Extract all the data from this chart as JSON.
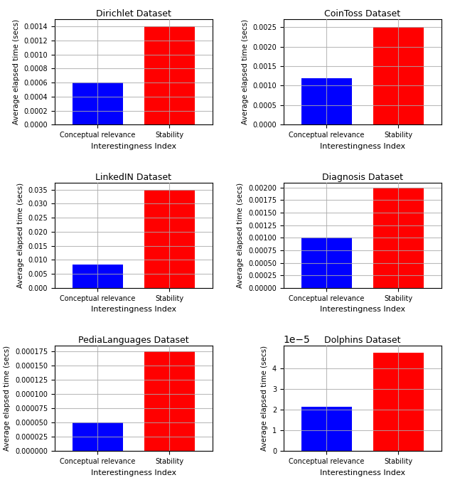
{
  "subplots": [
    {
      "title": "Dirichlet Dataset",
      "values": [
        0.0006,
        0.0014
      ],
      "ylim": [
        0,
        0.0015
      ],
      "yticks": [
        0.0,
        0.0002,
        0.0004,
        0.0006,
        0.0008,
        0.001,
        0.0012,
        0.0014
      ]
    },
    {
      "title": "CoinToss Dataset",
      "values": [
        0.0012,
        0.0025
      ],
      "ylim": [
        0,
        0.0027
      ],
      "yticks": [
        0.0,
        0.0005,
        0.001,
        0.0015,
        0.002,
        0.0025
      ]
    },
    {
      "title": "LinkedIN Dataset",
      "values": [
        0.0082,
        0.035
      ],
      "ylim": [
        0,
        0.0375
      ],
      "yticks": [
        0.0,
        0.005,
        0.01,
        0.015,
        0.02,
        0.025,
        0.03,
        0.035
      ]
    },
    {
      "title": "Diagnosis Dataset",
      "values": [
        0.001,
        0.002
      ],
      "ylim": [
        0,
        0.0021
      ],
      "yticks": [
        0.0,
        0.00025,
        0.0005,
        0.00075,
        0.001,
        0.00125,
        0.0015,
        0.00175,
        0.002
      ]
    },
    {
      "title": "PediaLanguages Dataset",
      "values": [
        5e-05,
        0.000175
      ],
      "ylim": [
        0,
        0.000185
      ],
      "yticks": [
        0.0,
        2.5e-05,
        5e-05,
        7.5e-05,
        0.0001,
        0.000125,
        0.00015,
        0.000175
      ]
    },
    {
      "title": "Dolphins Dataset",
      "values": [
        2.15e-05,
        4.75e-05
      ],
      "ylim": [
        0,
        5.1e-05
      ],
      "yticks": [
        0,
        1e-05,
        2e-05,
        3e-05,
        4e-05
      ],
      "use_sci": true
    }
  ],
  "categories": [
    "Conceptual relevance",
    "Stability"
  ],
  "bar_colors": [
    "blue",
    "red"
  ],
  "xlabel": "Interestingness Index",
  "ylabel": "Average elapsed time (secs)",
  "bar_width": 0.7,
  "grid_color": "#aaaaaa",
  "grid_alpha": 0.8,
  "background_color": "white"
}
